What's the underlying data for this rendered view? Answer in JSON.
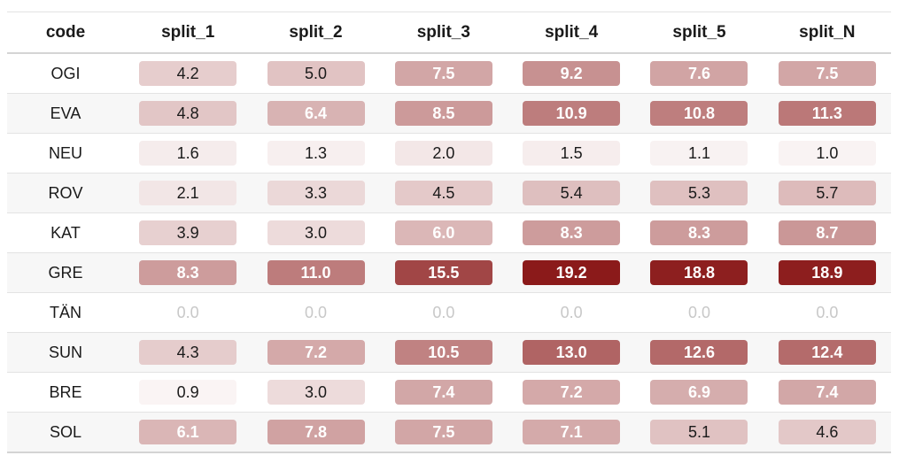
{
  "chart_data": {
    "type": "table",
    "columns": [
      "code",
      "split_1",
      "split_2",
      "split_3",
      "split_4",
      "split_5",
      "split_N"
    ],
    "rows": [
      {
        "code": "OGI",
        "values": [
          "4.2",
          "5.0",
          "7.5",
          "9.2",
          "7.6",
          "7.5"
        ]
      },
      {
        "code": "EVA",
        "values": [
          "4.8",
          "6.4",
          "8.5",
          "10.9",
          "10.8",
          "11.3"
        ]
      },
      {
        "code": "NEU",
        "values": [
          "1.6",
          "1.3",
          "2.0",
          "1.5",
          "1.1",
          "1.0"
        ]
      },
      {
        "code": "ROV",
        "values": [
          "2.1",
          "3.3",
          "4.5",
          "5.4",
          "5.3",
          "5.7"
        ]
      },
      {
        "code": "KAT",
        "values": [
          "3.9",
          "3.0",
          "6.0",
          "8.3",
          "8.3",
          "8.7"
        ]
      },
      {
        "code": "GRE",
        "values": [
          "8.3",
          "11.0",
          "15.5",
          "19.2",
          "18.8",
          "18.9"
        ]
      },
      {
        "code": "TÄN",
        "values": [
          "0.0",
          "0.0",
          "0.0",
          "0.0",
          "0.0",
          "0.0"
        ]
      },
      {
        "code": "SUN",
        "values": [
          "4.3",
          "7.2",
          "10.5",
          "13.0",
          "12.6",
          "12.4"
        ]
      },
      {
        "code": "BRE",
        "values": [
          "0.9",
          "3.0",
          "7.4",
          "7.2",
          "6.9",
          "7.4"
        ]
      },
      {
        "code": "SOL",
        "values": [
          "6.1",
          "7.8",
          "7.5",
          "7.1",
          "5.1",
          "4.6"
        ]
      }
    ],
    "color_scale": {
      "domain": [
        0,
        19.2
      ],
      "low_color": "#ffffff",
      "high_color": "#8b1a1a"
    }
  }
}
